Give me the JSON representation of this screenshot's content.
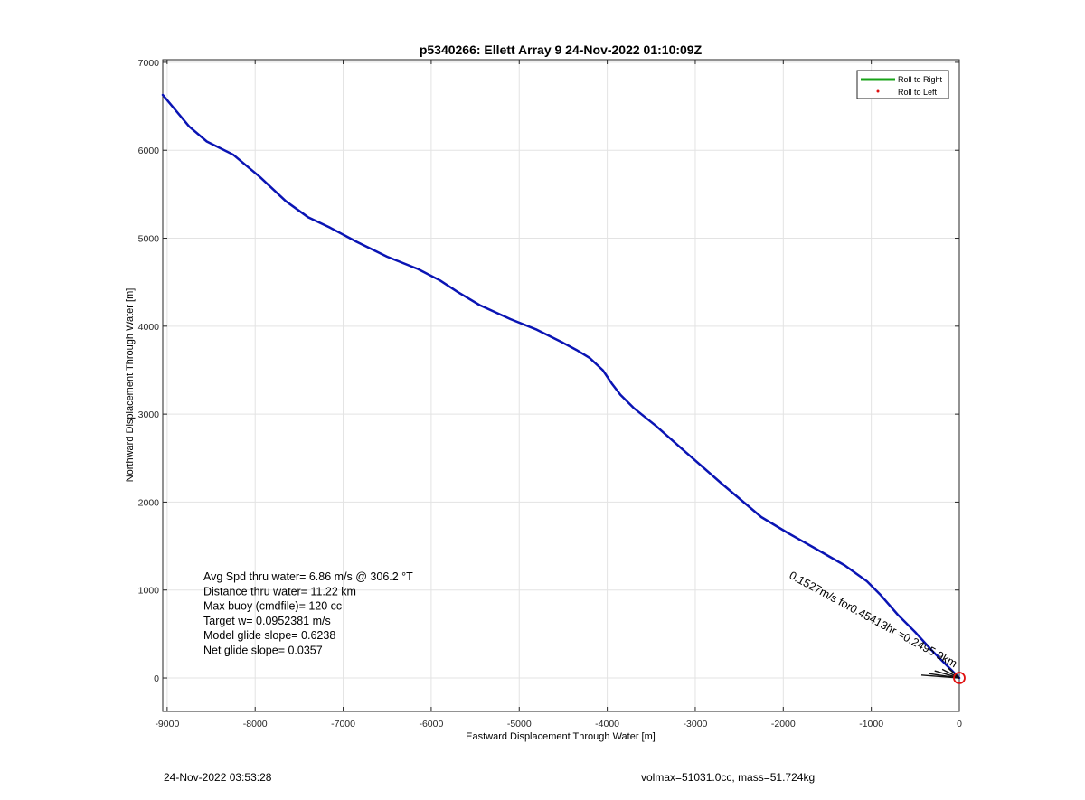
{
  "chart_data": {
    "type": "line",
    "title": "p5340266: Ellett Array 9 24-Nov-2022 01:10:09Z",
    "xlabel": "Eastward Displacement Through Water [m]",
    "ylabel": "Northward Displacement Through Water [m]",
    "xlim": [
      -9050,
      0
    ],
    "ylim": [
      -380,
      7030
    ],
    "grid": true,
    "x_ticks": [
      -9000,
      -8000,
      -7000,
      -6000,
      -5000,
      -4000,
      -3000,
      -2000,
      -1000,
      0
    ],
    "y_ticks": [
      0,
      1000,
      2000,
      3000,
      4000,
      5000,
      6000,
      7000
    ],
    "legend": {
      "position": "top-right",
      "entries": [
        {
          "label": "Roll to Right",
          "color": "#19a319",
          "marker": "line"
        },
        {
          "label": "Roll to Left",
          "color": "#e01010",
          "marker": "dot"
        }
      ]
    },
    "series": [
      {
        "color": "#0a14b4",
        "x": [
          -9050,
          -8750,
          -8550,
          -8250,
          -7950,
          -7650,
          -7400,
          -7150,
          -6850,
          -6500,
          -6150,
          -5900,
          -5700,
          -5450,
          -5100,
          -4800,
          -4500,
          -4350,
          -4200,
          -4050,
          -3950,
          -3850,
          -3700,
          -3450,
          -3100,
          -2700,
          -2250,
          -1950,
          -1650,
          -1300,
          -1050,
          -900,
          -700,
          -500,
          -300,
          -150,
          0
        ],
        "y": [
          6630,
          6270,
          6100,
          5950,
          5700,
          5420,
          5240,
          5120,
          4960,
          4790,
          4650,
          4520,
          4390,
          4240,
          4080,
          3960,
          3810,
          3730,
          3640,
          3500,
          3350,
          3220,
          3070,
          2870,
          2560,
          2210,
          1830,
          1650,
          1480,
          1280,
          1100,
          950,
          720,
          520,
          300,
          150,
          0
        ]
      }
    ],
    "annotations": {
      "stats": [
        "Avg Spd thru water=  6.86 m/s @ 306.2 °T",
        "Distance thru water= 11.22 km",
        "Max buoy (cmdfile)= 120 cc",
        "Target w= 0.0952381 m/s",
        "Model glide slope= 0.6238",
        "Net glide slope= 0.0357"
      ],
      "current_label": "0.1527m/s for0.45413hr =0.2495 9km",
      "marker": {
        "x": 0,
        "y": 0,
        "color": "#e01010"
      }
    }
  },
  "footer": {
    "timestamp": "24-Nov-2022 03:53:28",
    "mass_info": "volmax=51031.0cc, mass=51.724kg"
  }
}
